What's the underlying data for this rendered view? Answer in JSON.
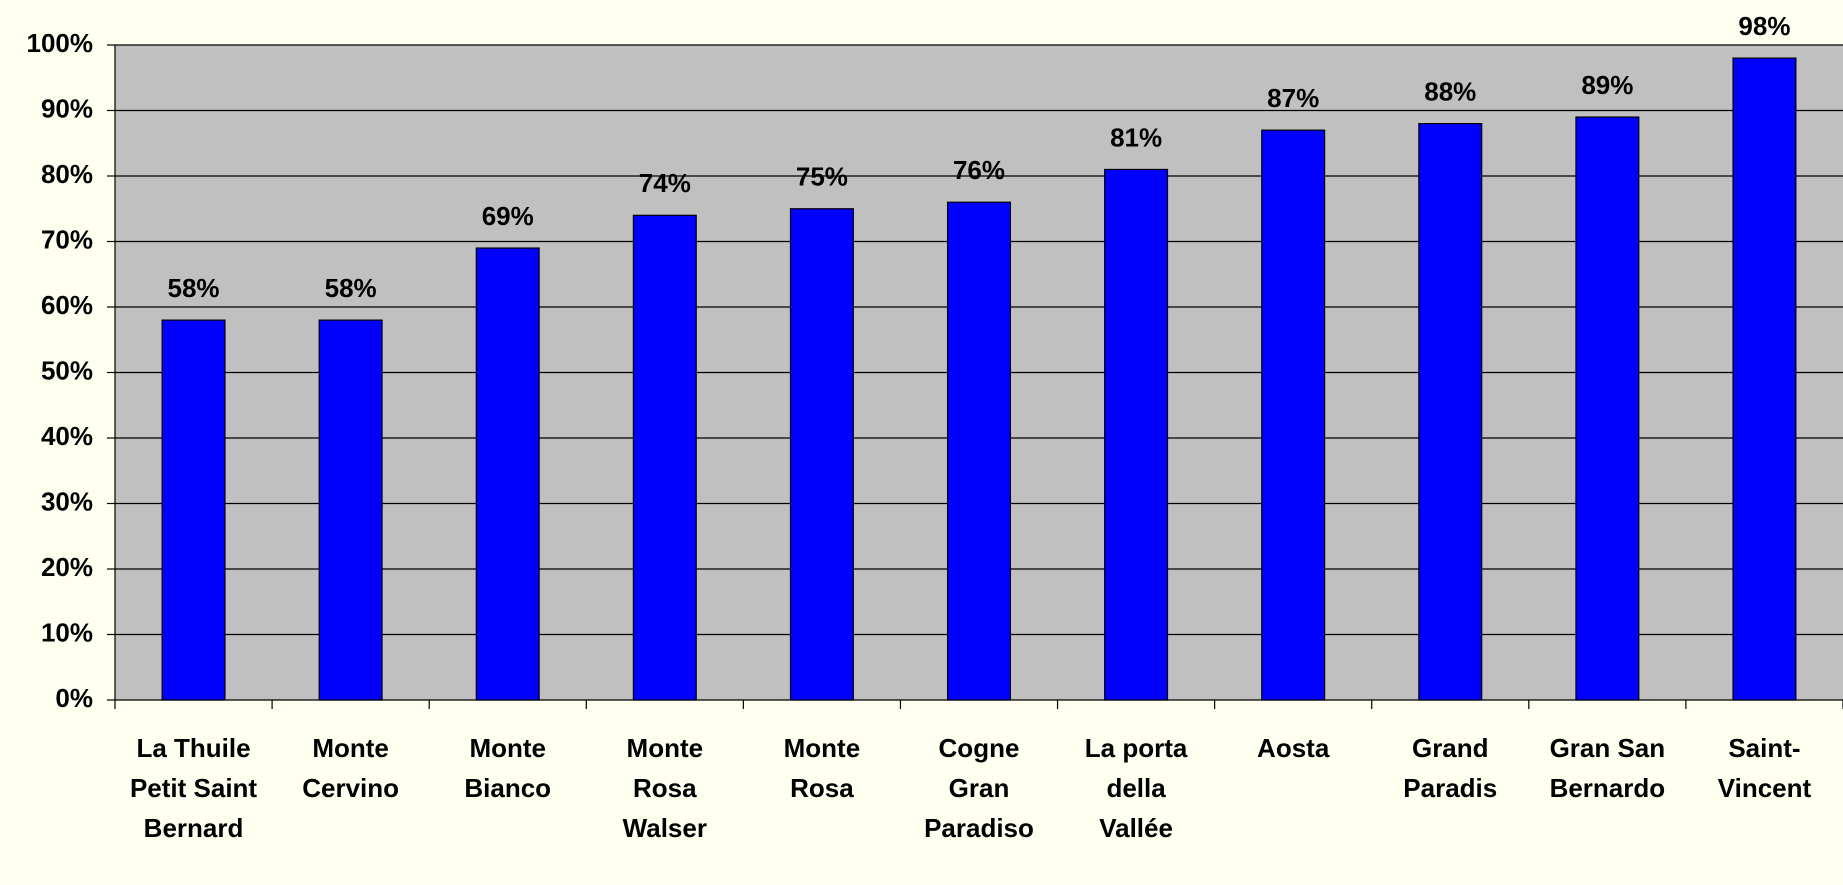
{
  "chart_data": {
    "type": "bar",
    "categories": [
      "La Thuile Petit Saint Bernard",
      "Monte Cervino",
      "Monte Bianco",
      "Monte Rosa Walser",
      "Monte Rosa",
      "Cogne Gran Paradiso",
      "La porta della Vallée",
      "Aosta",
      "Grand Paradis",
      "Gran San Bernardo",
      "Saint-Vincent"
    ],
    "values": [
      58,
      58,
      69,
      74,
      75,
      76,
      81,
      87,
      88,
      89,
      98
    ],
    "value_labels": [
      "58%",
      "58%",
      "69%",
      "74%",
      "75%",
      "76%",
      "81%",
      "87%",
      "88%",
      "89%",
      "98%"
    ],
    "color": "#0000ff",
    "ylim": [
      0,
      100
    ],
    "yticks": [
      {
        "value": 0,
        "label": "0%"
      },
      {
        "value": 10,
        "label": "10%"
      },
      {
        "value": 20,
        "label": "20%"
      },
      {
        "value": 30,
        "label": "30%"
      },
      {
        "value": 40,
        "label": "40%"
      },
      {
        "value": 50,
        "label": "50%"
      },
      {
        "value": 60,
        "label": "60%"
      },
      {
        "value": 70,
        "label": "70%"
      },
      {
        "value": 80,
        "label": "80%"
      },
      {
        "value": 90,
        "label": "90%"
      },
      {
        "value": 100,
        "label": "100%"
      }
    ],
    "grid": true
  }
}
